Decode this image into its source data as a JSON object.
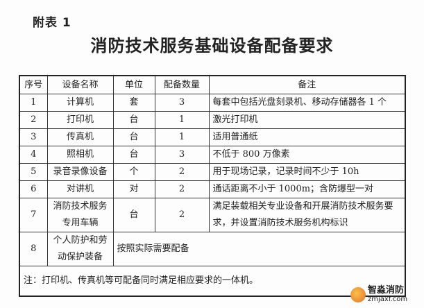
{
  "appendix_label": "附表 1",
  "title": "消防技术服务基础设备配备要求",
  "table": {
    "headers": [
      "序号",
      "设备名称",
      "单位",
      "配备数量",
      "备注"
    ],
    "rows": [
      {
        "no": "1",
        "name": "计算机",
        "unit": "套",
        "qty": "3",
        "remark": "每套中包括光盘刻录机、移动存储器各 1 个"
      },
      {
        "no": "2",
        "name": "打印机",
        "unit": "台",
        "qty": "1",
        "remark": "激光打印机"
      },
      {
        "no": "3",
        "name": "传真机",
        "unit": "台",
        "qty": "1",
        "remark": "适用普通纸"
      },
      {
        "no": "4",
        "name": "照相机",
        "unit": "台",
        "qty": "3",
        "remark": "不低于 800 万像素"
      },
      {
        "no": "5",
        "name": "录音录像设备",
        "unit": "个",
        "qty": "2",
        "remark": "用于现场记录，记录时间不少于 10h"
      },
      {
        "no": "6",
        "name": "对讲机",
        "unit": "对",
        "qty": "2",
        "remark": "通话距离不小于 1000m；含防爆型一对"
      },
      {
        "no": "7",
        "name": "消防技术服务专用车辆",
        "unit": "台",
        "qty": "2",
        "remark": "满足装载相关专业设备和开展消防技术服务要求，并设置消防技术服务机构标识"
      },
      {
        "no": "8",
        "name": "个人防护和劳动保护装备",
        "remark": "按照实际需要配备"
      }
    ],
    "note": "注：打印机、传真机等可配备同时满足相应要求的一体机。"
  },
  "watermark": {
    "name": "智淼消防",
    "url": "zmjaxf.com"
  }
}
